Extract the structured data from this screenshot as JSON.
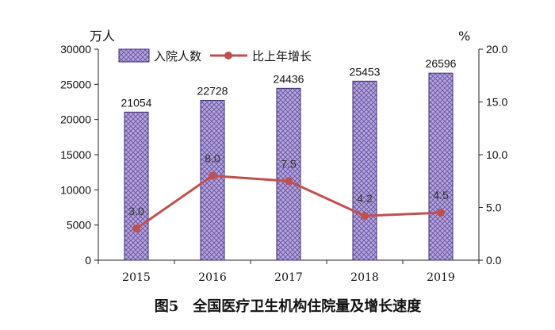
{
  "chart_data": {
    "type": "bar",
    "categories": [
      "2015",
      "2016",
      "2017",
      "2018",
      "2019"
    ],
    "series": [
      {
        "name": "入院人数",
        "type": "bar",
        "axis": "left",
        "values": [
          21054,
          22728,
          24436,
          25453,
          26596
        ]
      },
      {
        "name": "比上年增长",
        "type": "line",
        "axis": "right",
        "values": [
          3.0,
          8.0,
          7.5,
          4.2,
          4.5
        ]
      }
    ],
    "bar_labels": [
      "21054",
      "22728",
      "24436",
      "25453",
      "26596"
    ],
    "line_labels": [
      "3.0",
      "8.0",
      "7.5",
      "4.2",
      "4.5"
    ],
    "title": "图5　全国医疗卫生机构住院量及增长速度",
    "y_left_unit": "万人",
    "y_right_unit": "%",
    "ylim_left": [
      0,
      30000
    ],
    "ylim_right": [
      0,
      20
    ],
    "y_left_ticks": [
      "0",
      "5000",
      "10000",
      "15000",
      "20000",
      "25000",
      "30000"
    ],
    "y_right_ticks": [
      "0.0",
      "5.0",
      "10.0",
      "15.0",
      "20.0"
    ],
    "grid": false,
    "legend_position": "top-left",
    "colors": {
      "bar_fill": "#b9a6dd",
      "bar_hatch": "#6b5aa6",
      "bar_stroke": "#3a2d6b",
      "line": "#c0504d"
    }
  }
}
